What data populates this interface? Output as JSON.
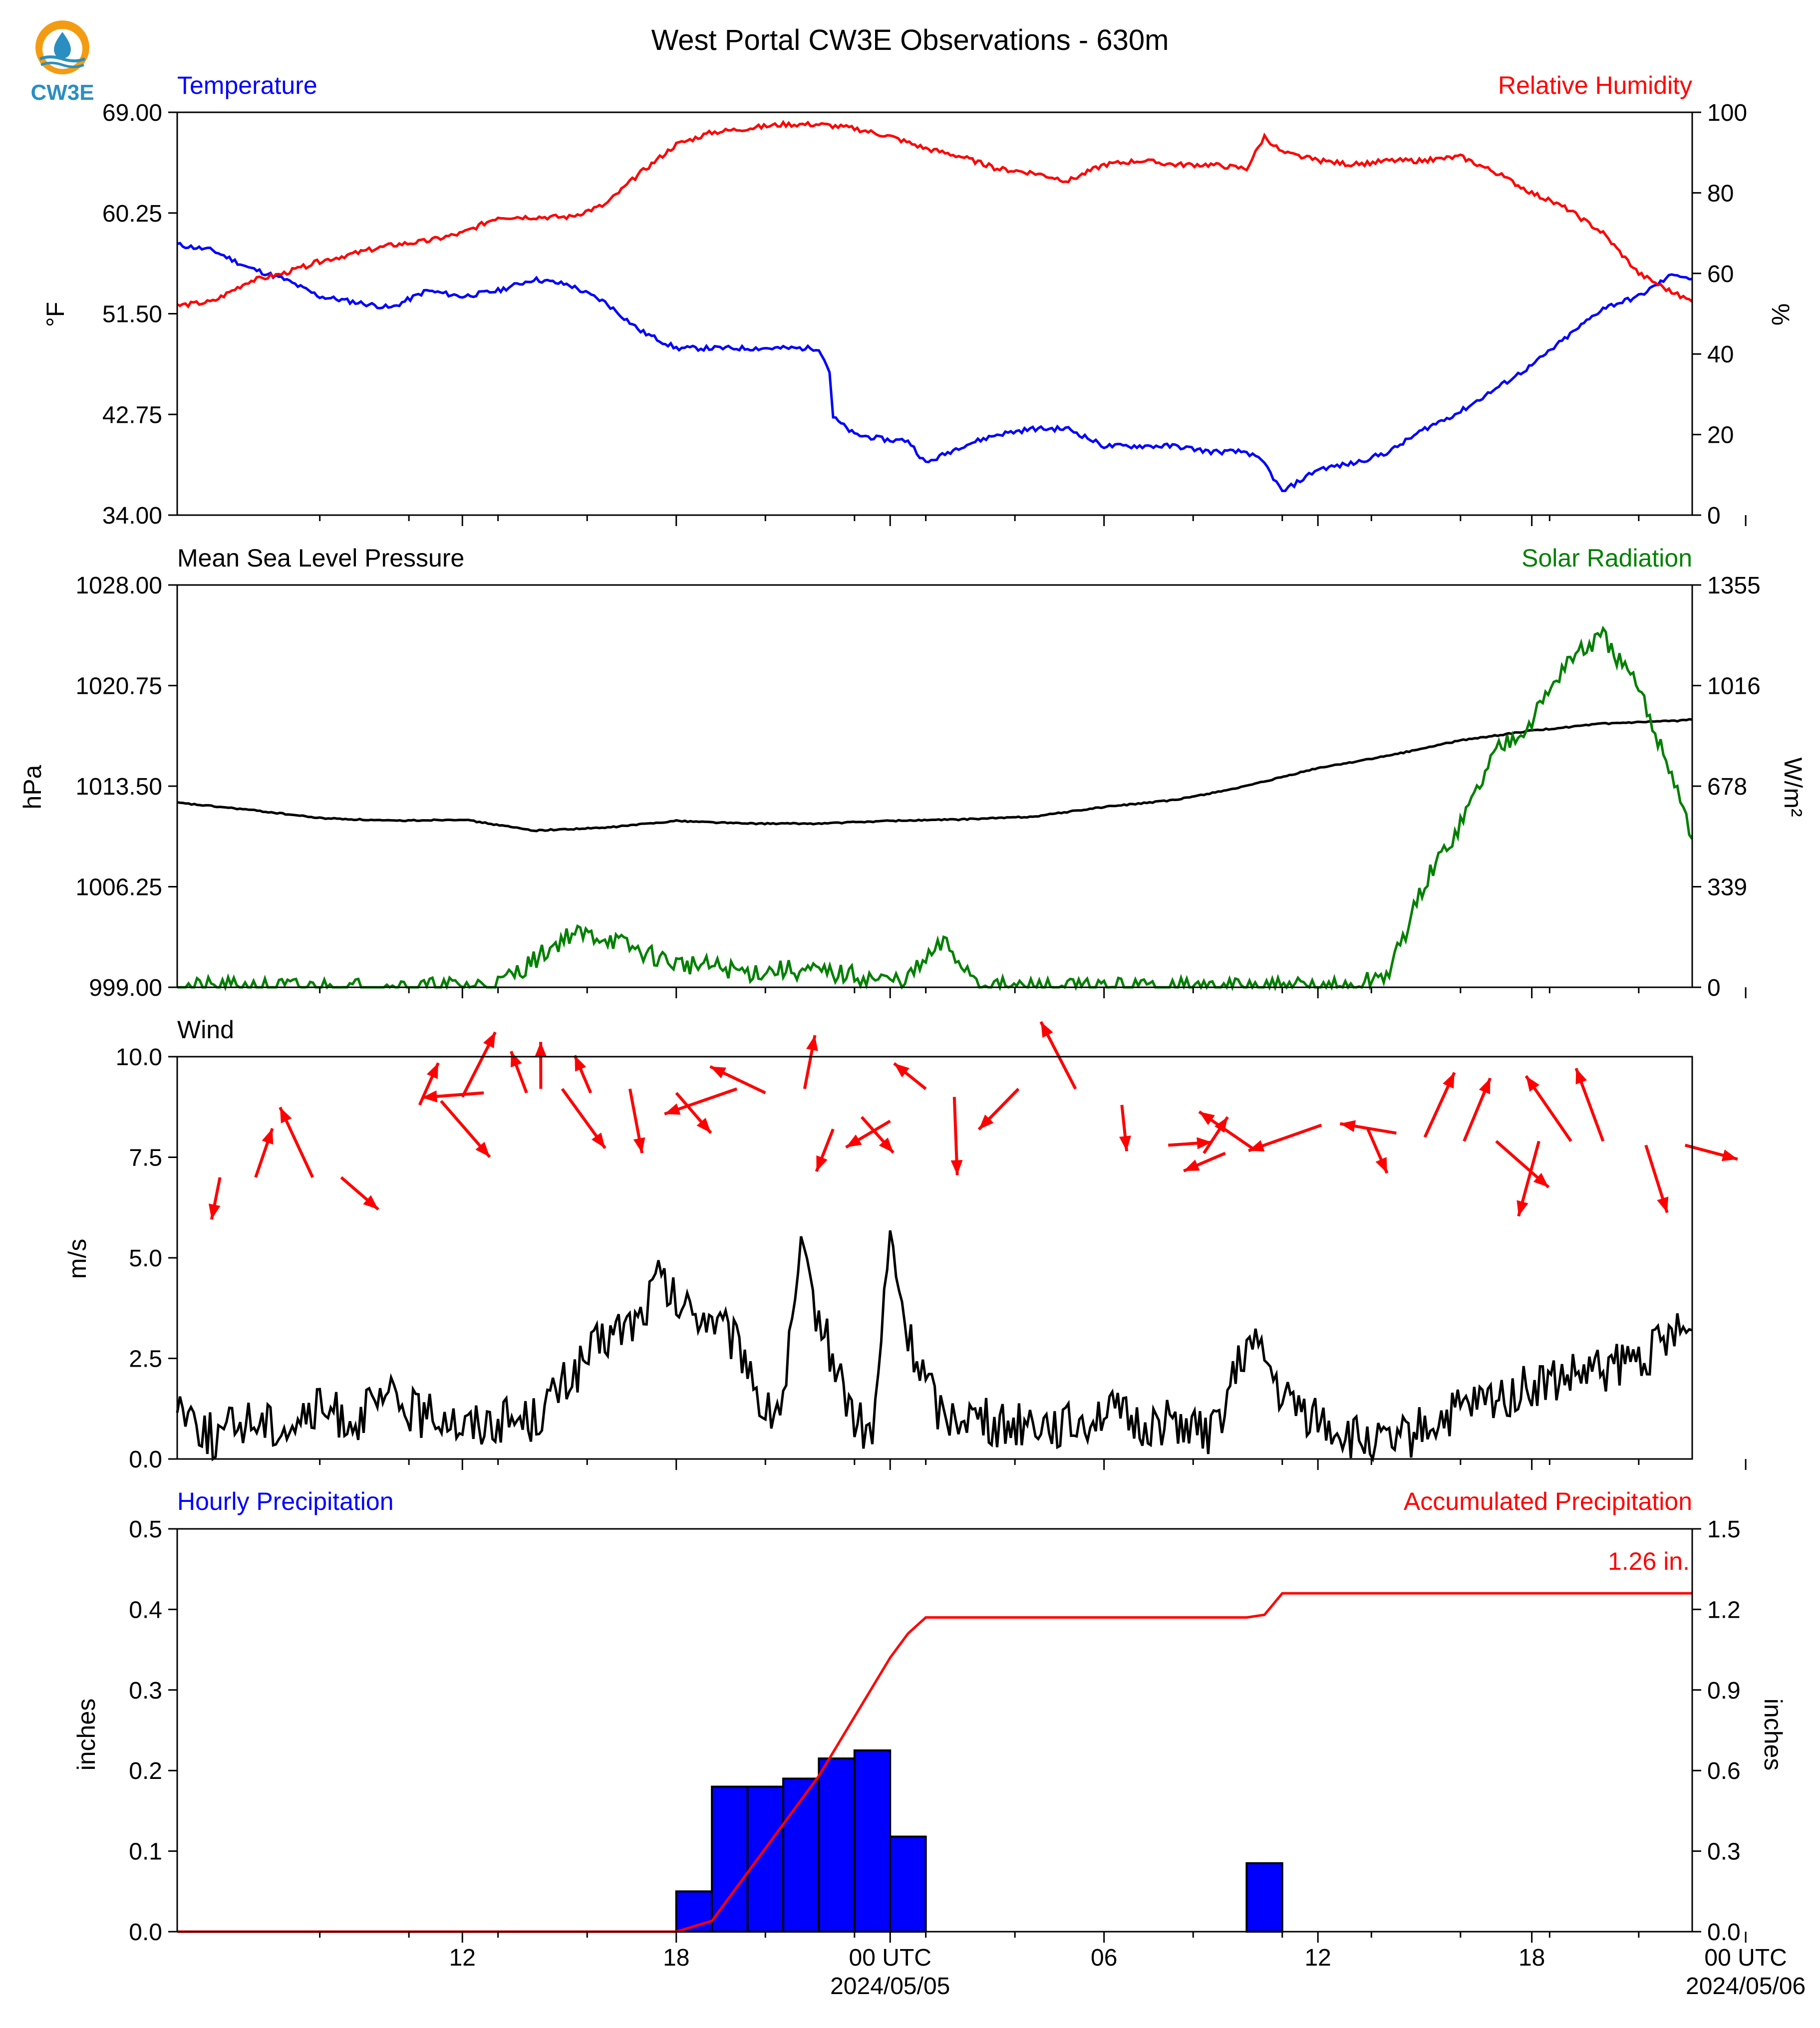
{
  "title": "West Portal CW3E Observations - 630m",
  "logo": {
    "text": "CW3E",
    "icon": "cw3e-logo-icon"
  },
  "colors": {
    "blue": "#0000ff",
    "red": "#ff0000",
    "green": "#008000",
    "black": "#000000"
  },
  "x_axis": {
    "range_hours": [
      -20,
      22.5
    ],
    "ticks_major": [
      {
        "h": -12,
        "label": "12",
        "date": ""
      },
      {
        "h": -6,
        "label": "18",
        "date": ""
      },
      {
        "h": 0,
        "label": "00 UTC",
        "date": "2024/05/05"
      },
      {
        "h": 6,
        "label": "06",
        "date": ""
      },
      {
        "h": 12,
        "label": "12",
        "date": ""
      },
      {
        "h": 18,
        "label": "18",
        "date": ""
      },
      {
        "h": 24,
        "label": "00 UTC",
        "date": "2024/05/06"
      }
    ],
    "ticks_minor_hours": [
      -16,
      -13.5,
      -11,
      -8.5,
      -3.5,
      -1,
      1,
      3.5,
      8.5,
      11,
      13.5,
      16,
      18.5,
      21
    ]
  },
  "chart_data": [
    {
      "type": "line",
      "panel": "temperature_rh",
      "left_title": "Temperature",
      "right_title": "Relative Humidity",
      "ylabel": "°F",
      "ylabel_right": "%",
      "ylim": [
        34.0,
        69.0
      ],
      "ylim_right": [
        0,
        100
      ],
      "yticks": [
        "69.00",
        "60.25",
        "51.50",
        "42.75",
        "34.00"
      ],
      "yticks_right": [
        "100",
        "80",
        "60",
        "40",
        "20",
        "0"
      ],
      "series": [
        {
          "axis": "left",
          "color": "blue",
          "x": [
            -20,
            -19,
            -18,
            -17,
            -16,
            -15,
            -14,
            -13,
            -12,
            -11,
            -10,
            -9,
            -8,
            -7,
            -6,
            -5,
            -4,
            -3,
            -2,
            -1.7,
            -1.6,
            -1,
            0,
            0.5,
            1,
            2,
            3,
            4,
            5,
            6,
            7,
            8,
            9,
            10,
            10.5,
            11,
            11.5,
            12,
            13,
            14,
            15,
            16,
            17,
            18,
            19,
            20,
            21,
            22,
            22.5
          ],
          "y": [
            57.5,
            57.0,
            55.5,
            54.5,
            53.0,
            52.5,
            52.0,
            53.5,
            53.0,
            53.5,
            54.5,
            54.0,
            52.5,
            50.0,
            48.5,
            48.5,
            48.5,
            48.5,
            48.5,
            46.5,
            42.5,
            41.0,
            40.5,
            40.5,
            38.5,
            40.0,
            41.0,
            41.5,
            41.5,
            40.0,
            40.0,
            40.0,
            39.5,
            39.5,
            38.5,
            36.0,
            37.0,
            38.0,
            38.5,
            39.5,
            41.5,
            43.0,
            45.0,
            47.0,
            49.5,
            52.0,
            53.0,
            55.0,
            54.5
          ]
        },
        {
          "axis": "right",
          "color": "red",
          "x": [
            -20,
            -19,
            -18,
            -17,
            -16,
            -15,
            -14,
            -13,
            -12,
            -11,
            -10,
            -9,
            -8,
            -7,
            -6,
            -5,
            -4,
            -3,
            -2,
            -1,
            0,
            1,
            2,
            3,
            4,
            5,
            6,
            7,
            8,
            9,
            10,
            10.5,
            11,
            12,
            13,
            14,
            15,
            16,
            17,
            18,
            19,
            20,
            21,
            22,
            22.5
          ],
          "y": [
            52,
            53,
            58,
            60,
            63,
            65,
            67,
            68,
            70,
            74,
            74,
            74,
            77,
            85,
            92,
            95,
            96,
            97,
            97,
            96,
            94,
            91,
            89,
            86,
            85,
            83,
            87,
            88,
            87,
            87,
            86,
            94,
            90,
            88,
            87,
            88,
            88,
            89,
            85,
            80,
            76,
            70,
            60,
            55,
            53
          ]
        }
      ]
    },
    {
      "type": "line",
      "panel": "pressure_solar",
      "left_title": "Mean Sea Level Pressure",
      "right_title": "Solar Radiation",
      "ylabel": "hPa",
      "ylabel_right": "W/m²",
      "ylim": [
        999.0,
        1028.0
      ],
      "ylim_right": [
        0,
        1355
      ],
      "yticks": [
        "1028.00",
        "1020.75",
        "1013.50",
        "1006.25",
        "999.00"
      ],
      "yticks_right": [
        "1355",
        "1016",
        "678",
        "339",
        "0"
      ],
      "series": [
        {
          "axis": "left",
          "color": "black",
          "x": [
            -20,
            -18,
            -16,
            -14,
            -12,
            -10,
            -8,
            -6,
            -4,
            -2,
            0,
            2,
            4,
            6,
            8,
            10,
            12,
            14,
            16,
            18,
            20,
            22,
            22.5
          ],
          "y": [
            1012.3,
            1011.8,
            1011.2,
            1011.0,
            1011.1,
            1010.3,
            1010.5,
            1011.0,
            1010.8,
            1010.8,
            1011.0,
            1011.1,
            1011.3,
            1012.0,
            1012.5,
            1013.5,
            1014.8,
            1015.7,
            1016.8,
            1017.5,
            1018.0,
            1018.2,
            1018.3
          ]
        },
        {
          "axis": "right",
          "color": "green",
          "x": [
            -20,
            -15,
            -13,
            -11,
            -10,
            -9,
            -8,
            -7,
            -6,
            -5,
            -4,
            -3,
            -2,
            -1,
            -0.5,
            0,
            0.5,
            1,
            1.5,
            2,
            2.5,
            3,
            6,
            10,
            12,
            13,
            14,
            15,
            16,
            17,
            18,
            19,
            20,
            21,
            22,
            22.5
          ],
          "y": [
            0,
            0,
            0,
            10,
            90,
            180,
            170,
            120,
            80,
            70,
            50,
            60,
            50,
            40,
            30,
            20,
            30,
            90,
            150,
            80,
            20,
            0,
            0,
            0,
            0,
            0,
            50,
            350,
            550,
            800,
            900,
            1100,
            1180,
            1000,
            700,
            500
          ]
        }
      ]
    },
    {
      "type": "line",
      "panel": "wind",
      "left_title": "Wind",
      "ylabel": "m/s",
      "ylim": [
        0.0,
        10.0
      ],
      "yticks": [
        "10.0",
        "7.5",
        "5.0",
        "2.5",
        "0.0"
      ],
      "series": [
        {
          "axis": "left",
          "color": "black",
          "x": [
            -20,
            -19,
            -18,
            -17,
            -16,
            -15,
            -14,
            -13,
            -12.5,
            -12,
            -11,
            -10,
            -9,
            -8,
            -7,
            -6.5,
            -6,
            -5,
            -4,
            -3.5,
            -3,
            -2.5,
            -2,
            -1,
            -0.5,
            0,
            0.5,
            1,
            1.5,
            2,
            3,
            4,
            5,
            6,
            7,
            8,
            9,
            10,
            10.5,
            11,
            12,
            13,
            14,
            15,
            16,
            17,
            18,
            19,
            20,
            21,
            22,
            22.5
          ],
          "y": [
            1.5,
            0.5,
            1.0,
            0.8,
            1.2,
            1.0,
            1.5,
            1.0,
            1.2,
            0.8,
            1.0,
            1.0,
            2.0,
            3.0,
            3.5,
            4.5,
            3.8,
            3.5,
            2.5,
            1.0,
            1.5,
            5.0,
            3.5,
            1.0,
            0.5,
            5.5,
            3.0,
            2.0,
            1.0,
            1.2,
            0.8,
            1.0,
            0.8,
            1.2,
            0.8,
            1.0,
            0.5,
            2.8,
            2.5,
            1.5,
            1.0,
            0.5,
            0.3,
            0.8,
            1.2,
            1.5,
            1.8,
            2.0,
            2.2,
            2.5,
            3.0,
            3.2
          ]
        },
        {
          "axis": "left",
          "color": "red",
          "kind": "vectors",
          "name": "Wind direction",
          "x": [
            -18.8,
            -17.8,
            -16.2,
            -15.4,
            -13.2,
            -12.6,
            -12,
            -11.4,
            -10.2,
            -9.8,
            -9.2,
            -8.4,
            -7.3,
            -6,
            -4.3,
            -3.5,
            -2.4,
            -1.6,
            -0.8,
            0,
            1,
            1.8,
            3.6,
            5.2,
            6.5,
            7.8,
            8.8,
            9.4,
            10.2,
            12.1,
            13.4,
            14.2,
            15.0,
            16.1,
            17.0,
            18.2,
            19.1,
            20.0,
            21.2,
            22.3
          ],
          "y": [
            7.0,
            7.0,
            7.0,
            7.0,
            8.8,
            8.9,
            9.0,
            9.1,
            9.1,
            9.2,
            9.2,
            9.1,
            9.2,
            9.1,
            9.2,
            9.1,
            9.2,
            8.2,
            8.5,
            8.4,
            9.2,
            9.0,
            9.2,
            9.2,
            8.8,
            7.8,
            7.6,
            7.6,
            7.7,
            8.3,
            8.2,
            8.1,
            8.0,
            7.9,
            7.9,
            7.9,
            7.9,
            7.9,
            7.8,
            7.8
          ]
        }
      ]
    },
    {
      "type": "bar",
      "panel": "precipitation",
      "left_title": "Hourly Precipitation",
      "right_title": "Accumulated Precipitation",
      "annotation": "1.26 in.",
      "ylabel": "inches",
      "ylabel_right": "inches",
      "ylim": [
        0.0,
        0.5
      ],
      "ylim_right": [
        0.0,
        1.5
      ],
      "yticks": [
        "0.5",
        "0.4",
        "0.3",
        "0.2",
        "0.1",
        "0.0"
      ],
      "yticks_right": [
        "1.5",
        "1.2",
        "0.9",
        "0.6",
        "0.3",
        "0.0"
      ],
      "bars": {
        "x_start": [
          -6,
          -5,
          -4,
          -3,
          -2,
          -1,
          0,
          10
        ],
        "values": [
          0.05,
          0.18,
          0.18,
          0.19,
          0.215,
          0.225,
          0.118,
          0.085
        ]
      },
      "series": [
        {
          "axis": "right",
          "color": "red",
          "x": [
            -20,
            -6,
            -5,
            -4,
            -3,
            -2,
            -1,
            0,
            0.5,
            1,
            5,
            10,
            10.5,
            11,
            22.5
          ],
          "y": [
            0.0,
            0.0,
            0.04,
            0.22,
            0.4,
            0.58,
            0.8,
            1.02,
            1.11,
            1.17,
            1.17,
            1.17,
            1.18,
            1.26,
            1.26
          ]
        }
      ]
    }
  ]
}
